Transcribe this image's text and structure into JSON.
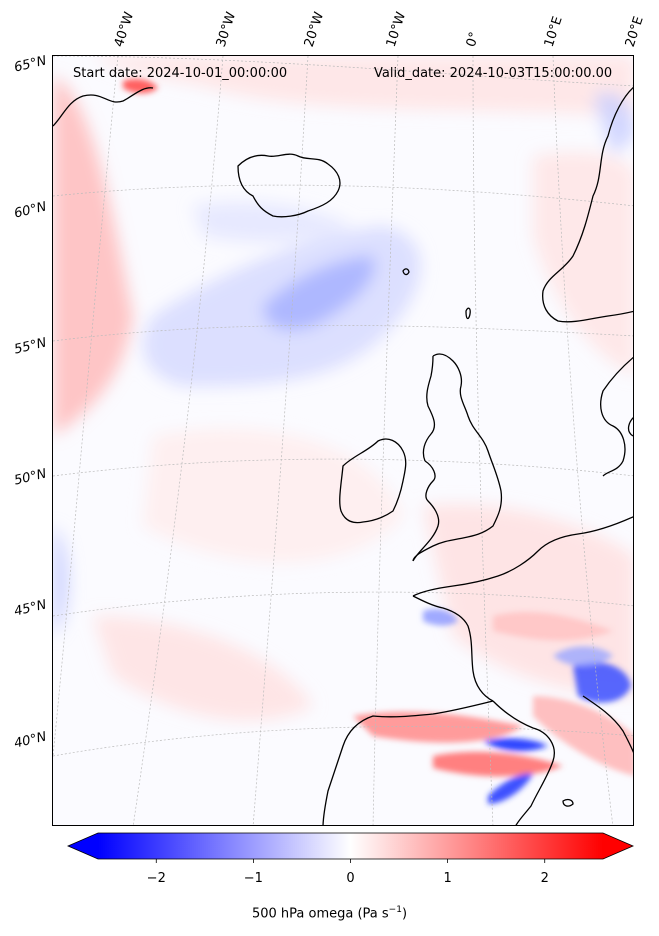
{
  "header": {
    "start_date": "Start date: 2024-10-01_00:00:00",
    "valid_date": "Valid_date: 2024-10-03T15:00:00.00"
  },
  "longitude_labels": [
    "40°W",
    "30°W",
    "20°W",
    "10°W",
    "0°",
    "10°E",
    "20°E"
  ],
  "latitude_labels": [
    "65°N",
    "60°N",
    "55°N",
    "50°N",
    "45°N",
    "40°N"
  ],
  "colorbar": {
    "label_main": "500 hPa omega (Pa s",
    "label_sup": "−1",
    "label_end": ")",
    "min": -2.6,
    "max": 2.6,
    "ticks": [
      "−2",
      "−1",
      "0",
      "1",
      "2"
    ],
    "tick_values": [
      -2,
      -1,
      0,
      1,
      2
    ],
    "negative_color": "#0000ff",
    "zero_color": "#ffffff",
    "positive_color": "#ff0000"
  },
  "coastline_color": "#000000",
  "grid_color": "#bbbbbb"
}
